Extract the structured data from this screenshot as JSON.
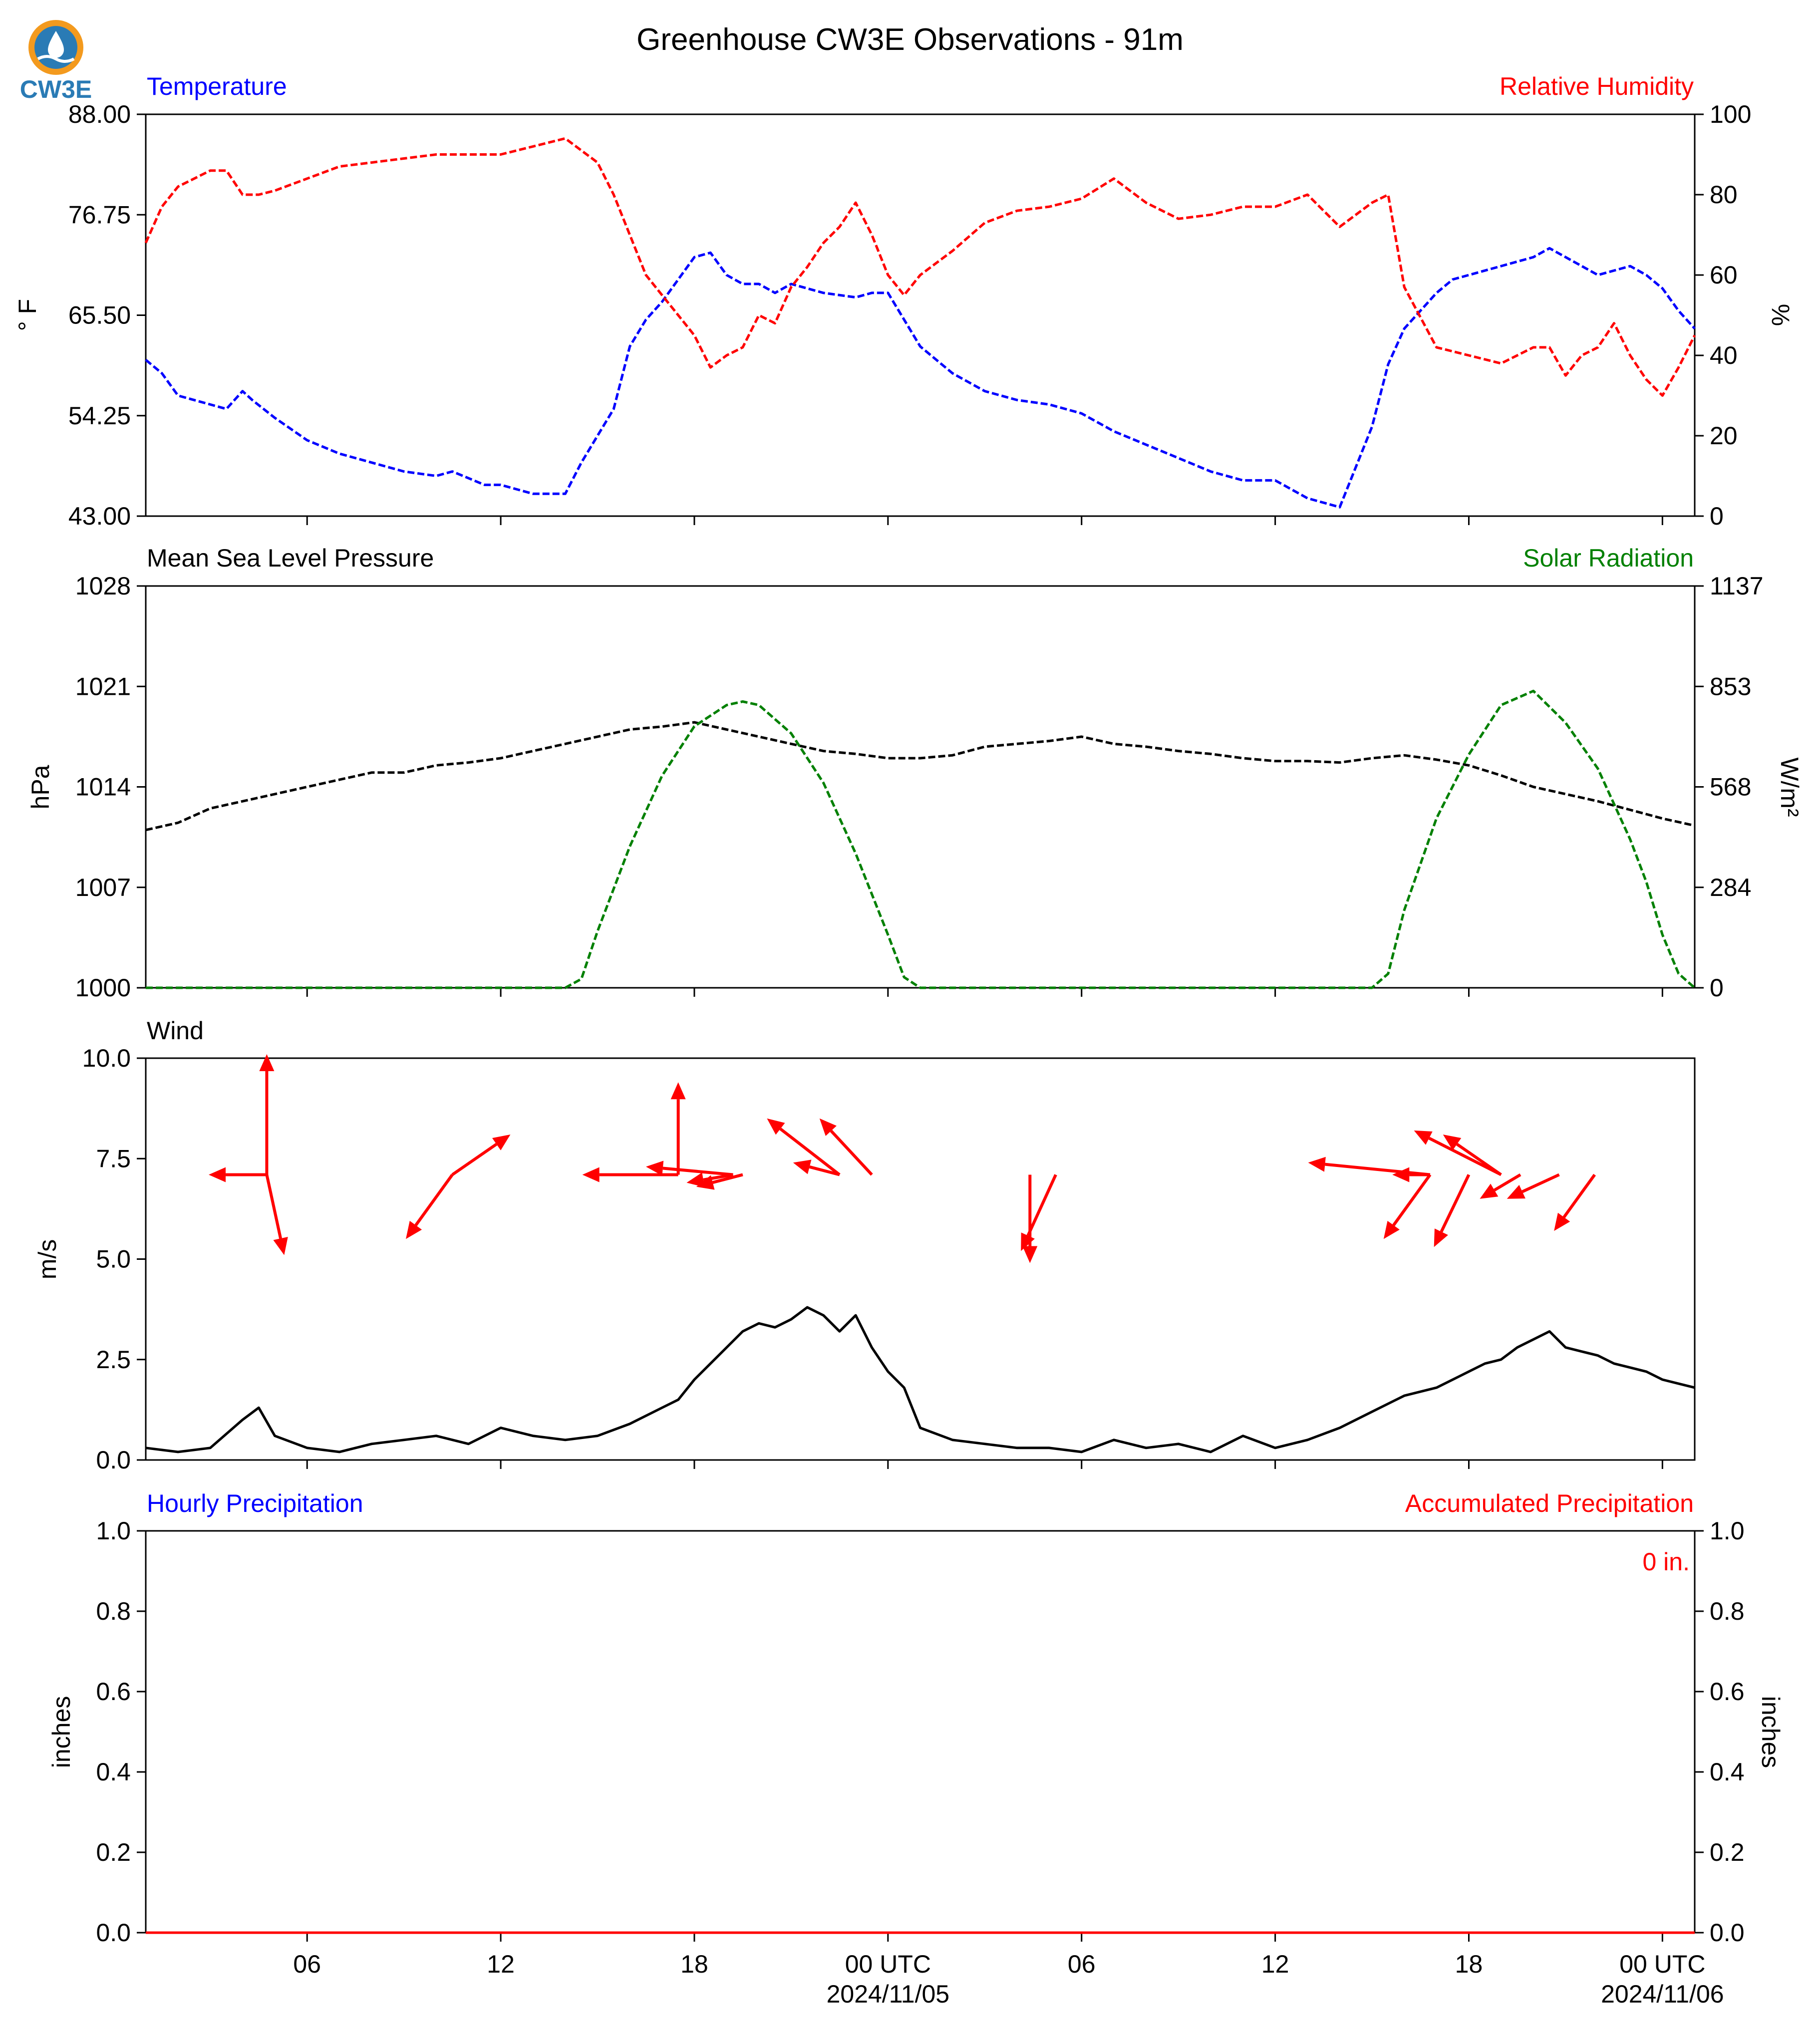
{
  "title": "Greenhouse CW3E Observations - 91m",
  "logo": {
    "text": "CW3E",
    "primary_color": "#2a7bb5",
    "accent_color": "#f39a1e"
  },
  "x_axis": {
    "tick_hours": [
      6,
      12,
      18,
      24,
      30,
      36,
      42,
      48
    ],
    "tick_labels": [
      "06",
      "12",
      "18",
      "00 UTC",
      "06",
      "12",
      "18",
      "00 UTC"
    ],
    "date_labels": [
      {
        "hour": 24,
        "text": "2024/11/05"
      },
      {
        "hour": 48,
        "text": "2024/11/06"
      }
    ],
    "range_hours": [
      1,
      49
    ]
  },
  "chart_data": [
    {
      "type": "line",
      "panel": "temperature-humidity",
      "left_label": "Temperature",
      "right_label": "Relative Humidity",
      "ylabel_left": "° F",
      "ylabel_right": "%",
      "ylim_left": [
        43,
        88
      ],
      "ylim_right": [
        0,
        100
      ],
      "yticks_left": [
        "43.00",
        "54.25",
        "65.50",
        "76.75",
        "88.00"
      ],
      "yticks_right": [
        "0",
        "20",
        "40",
        "60",
        "80",
        "100"
      ],
      "series": [
        {
          "name": "Temperature",
          "color": "#0000ff",
          "axis": "left",
          "x": [
            1,
            1.5,
            2,
            3,
            3.5,
            4,
            4.3,
            5,
            6,
            7,
            8,
            9,
            10,
            10.5,
            11.5,
            12,
            13,
            14,
            14.5,
            15,
            15.5,
            16,
            16.5,
            17,
            17.5,
            18,
            18.5,
            19,
            19.5,
            20,
            20.5,
            21,
            22,
            23,
            23.5,
            24,
            24.5,
            25,
            26,
            27,
            28,
            29,
            30,
            31,
            32,
            33,
            34,
            35,
            36,
            37,
            38,
            39,
            39.5,
            40,
            40.5,
            41,
            41.5,
            42,
            43,
            44,
            44.5,
            45,
            46,
            47,
            47.5,
            48,
            48.5,
            49
          ],
          "y": [
            60.5,
            59,
            56.5,
            55.5,
            55,
            57,
            56,
            54,
            51.5,
            50,
            49,
            48,
            47.5,
            48,
            46.5,
            46.5,
            45.5,
            45.5,
            49,
            52,
            55,
            62,
            65,
            67,
            69.5,
            72,
            72.5,
            70,
            69,
            69,
            68,
            69,
            68,
            67.5,
            68,
            68,
            65,
            62,
            59,
            57,
            56,
            55.5,
            54.5,
            52.5,
            51,
            49.5,
            48,
            47,
            47,
            45,
            44,
            53,
            60,
            64,
            66,
            68,
            69.5,
            70,
            71,
            72,
            73,
            72,
            70,
            71,
            70,
            68.5,
            66,
            64
          ]
        },
        {
          "name": "Relative Humidity",
          "color": "#ff0000",
          "axis": "right",
          "x": [
            1,
            1.5,
            2,
            3,
            3.5,
            4,
            4.5,
            5,
            6,
            7,
            8,
            9,
            10,
            11,
            12,
            13,
            14,
            15,
            15.5,
            16,
            16.5,
            17,
            17.5,
            18,
            18.5,
            19,
            19.5,
            20,
            20.5,
            21,
            21.5,
            22,
            22.5,
            23,
            23.5,
            24,
            24.5,
            25,
            26,
            27,
            28,
            29,
            30,
            31,
            32,
            33,
            34,
            35,
            36,
            37,
            38,
            39,
            39.5,
            40,
            41,
            42,
            43,
            44,
            44.5,
            45,
            45.5,
            46,
            46.5,
            47,
            47.5,
            48,
            48.5,
            49
          ],
          "y": [
            68,
            77,
            82,
            86,
            86,
            80,
            80,
            81,
            84,
            87,
            88,
            89,
            90,
            90,
            90,
            92,
            94,
            88,
            80,
            70,
            60,
            55,
            50,
            45,
            37,
            40,
            42,
            50,
            48,
            57,
            62,
            68,
            72,
            78,
            70,
            60,
            55,
            60,
            66,
            73,
            76,
            77,
            79,
            84,
            78,
            74,
            75,
            77,
            77,
            80,
            72,
            78,
            80,
            57,
            42,
            40,
            38,
            42,
            42,
            35,
            40,
            42,
            48,
            40,
            34,
            30,
            37,
            45
          ]
        }
      ]
    },
    {
      "type": "line",
      "panel": "pressure-solar",
      "left_label": "Mean Sea Level Pressure",
      "right_label": "Solar Radiation",
      "ylabel_left": "hPa",
      "ylabel_right": "W/m²",
      "ylim_left": [
        1000,
        1028
      ],
      "ylim_right": [
        0,
        1137
      ],
      "yticks_left": [
        "1000",
        "1007",
        "1014",
        "1021",
        "1028"
      ],
      "yticks_right": [
        "0",
        "284",
        "568",
        "853",
        "1137"
      ],
      "series": [
        {
          "name": "Mean Sea Level Pressure",
          "color": "#000000",
          "axis": "left",
          "x": [
            1,
            2,
            3,
            4,
            5,
            6,
            7,
            8,
            9,
            10,
            11,
            12,
            13,
            14,
            15,
            16,
            17,
            18,
            19,
            20,
            21,
            22,
            23,
            24,
            25,
            26,
            27,
            28,
            29,
            30,
            31,
            32,
            33,
            34,
            35,
            36,
            37,
            38,
            39,
            40,
            41,
            42,
            43,
            44,
            45,
            46,
            47,
            48,
            49
          ],
          "y": [
            1011,
            1011.5,
            1012.5,
            1013,
            1013.5,
            1014,
            1014.5,
            1015,
            1015,
            1015.5,
            1015.7,
            1016,
            1016.5,
            1017,
            1017.5,
            1018,
            1018.2,
            1018.5,
            1018,
            1017.5,
            1017,
            1016.5,
            1016.3,
            1016,
            1016,
            1016.2,
            1016.8,
            1017,
            1017.2,
            1017.5,
            1017,
            1016.8,
            1016.5,
            1016.3,
            1016,
            1015.8,
            1015.8,
            1015.7,
            1016,
            1016.2,
            1015.9,
            1015.5,
            1014.8,
            1014,
            1013.5,
            1013,
            1012.4,
            1011.8,
            1011.3
          ]
        },
        {
          "name": "Solar Radiation",
          "color": "#008000",
          "axis": "right",
          "x": [
            1,
            14,
            14.5,
            15,
            16,
            17,
            18,
            19,
            19.5,
            20,
            21,
            22,
            23,
            24,
            24.5,
            25,
            30,
            39,
            39.5,
            40,
            41,
            42,
            43,
            44,
            45,
            46,
            46.5,
            47,
            47.5,
            48,
            48.5,
            49
          ],
          "y": [
            0,
            0,
            25,
            160,
            400,
            600,
            740,
            800,
            810,
            800,
            720,
            580,
            380,
            150,
            30,
            0,
            0,
            0,
            40,
            220,
            480,
            660,
            800,
            840,
            750,
            620,
            520,
            420,
            300,
            150,
            40,
            0
          ]
        }
      ]
    },
    {
      "type": "line",
      "panel": "wind",
      "left_label": "Wind",
      "ylabel_left": "m/s",
      "ylim_left": [
        0,
        10
      ],
      "yticks_left": [
        "0.0",
        "2.5",
        "5.0",
        "7.5",
        "10.0"
      ],
      "series": [
        {
          "name": "Wind Speed",
          "color": "#000000",
          "axis": "left",
          "x": [
            1,
            2,
            3,
            4,
            4.5,
            5,
            6,
            7,
            8,
            9,
            10,
            11,
            12,
            13,
            14,
            15,
            16,
            17,
            17.5,
            18,
            18.5,
            19,
            19.5,
            20,
            20.5,
            21,
            21.5,
            22,
            22.5,
            23,
            23.5,
            24,
            24.5,
            25,
            26,
            27,
            28,
            29,
            30,
            31,
            32,
            33,
            34,
            35,
            36,
            37,
            38,
            39,
            40,
            41,
            41.5,
            42,
            42.5,
            43,
            43.5,
            44,
            44.5,
            45,
            45.5,
            46,
            46.5,
            47,
            47.5,
            48,
            48.5,
            49
          ],
          "y": [
            0.3,
            0.2,
            0.3,
            1,
            1.3,
            0.6,
            0.3,
            0.2,
            0.4,
            0.5,
            0.6,
            0.4,
            0.8,
            0.6,
            0.5,
            0.6,
            0.9,
            1.3,
            1.5,
            2,
            2.4,
            2.8,
            3.2,
            3.4,
            3.3,
            3.5,
            3.8,
            3.6,
            3.2,
            3.6,
            2.8,
            2.2,
            1.8,
            0.8,
            0.5,
            0.4,
            0.3,
            0.3,
            0.2,
            0.5,
            0.3,
            0.4,
            0.2,
            0.6,
            0.3,
            0.5,
            0.8,
            1.2,
            1.6,
            1.8,
            2,
            2.2,
            2.4,
            2.5,
            2.8,
            3,
            3.2,
            2.8,
            2.7,
            2.6,
            2.4,
            2.3,
            2.2,
            2,
            1.9,
            1.8
          ]
        }
      ],
      "wind_barbs": [
        {
          "x": 4.75,
          "y": 7.1,
          "dx": 0.0,
          "dy": 3.0
        },
        {
          "x": 4.75,
          "y": 7.1,
          "dx": -2.0,
          "dy": 0.0
        },
        {
          "x": 4.75,
          "y": 7.1,
          "dx": 0.6,
          "dy": -2.0
        },
        {
          "x": 10.5,
          "y": 7.1,
          "dx": 2.0,
          "dy": 1.0
        },
        {
          "x": 10.5,
          "y": 7.1,
          "dx": -1.6,
          "dy": -1.6
        },
        {
          "x": 17.5,
          "y": 7.1,
          "dx": 0.0,
          "dy": 2.3
        },
        {
          "x": 17.5,
          "y": 7.1,
          "dx": -3.3,
          "dy": 0.0
        },
        {
          "x": 19.2,
          "y": 7.1,
          "dx": -3.0,
          "dy": 0.2
        },
        {
          "x": 19.2,
          "y": 7.1,
          "dx": -1.6,
          "dy": -0.2
        },
        {
          "x": 19.5,
          "y": 7.1,
          "dx": -1.6,
          "dy": -0.3
        },
        {
          "x": 22.5,
          "y": 7.1,
          "dx": -2.5,
          "dy": 1.4
        },
        {
          "x": 22.5,
          "y": 7.1,
          "dx": -1.6,
          "dy": 0.3
        },
        {
          "x": 23.5,
          "y": 7.1,
          "dx": -1.8,
          "dy": 1.4
        },
        {
          "x": 28.4,
          "y": 7.1,
          "dx": 0.0,
          "dy": -2.2
        },
        {
          "x": 29.2,
          "y": 7.1,
          "dx": -1.2,
          "dy": -1.9
        },
        {
          "x": 40.8,
          "y": 7.1,
          "dx": -4.2,
          "dy": 0.3
        },
        {
          "x": 40.8,
          "y": 7.1,
          "dx": -1.3,
          "dy": 0.0
        },
        {
          "x": 40.8,
          "y": 7.1,
          "dx": -1.6,
          "dy": -1.6
        },
        {
          "x": 42.0,
          "y": 7.1,
          "dx": -1.2,
          "dy": -1.8
        },
        {
          "x": 43.0,
          "y": 7.1,
          "dx": -3.0,
          "dy": 1.1
        },
        {
          "x": 43.0,
          "y": 7.1,
          "dx": -2.0,
          "dy": 1.0
        },
        {
          "x": 43.6,
          "y": 7.1,
          "dx": -1.4,
          "dy": -0.6
        },
        {
          "x": 44.8,
          "y": 7.1,
          "dx": -1.8,
          "dy": -0.6
        },
        {
          "x": 45.9,
          "y": 7.1,
          "dx": -1.4,
          "dy": -1.4
        }
      ]
    },
    {
      "type": "line",
      "panel": "precipitation",
      "left_label": "Hourly Precipitation",
      "right_label": "Accumulated Precipitation",
      "ylabel_left": "inches",
      "ylabel_right": "inches",
      "ylim_left": [
        0,
        1
      ],
      "ylim_right": [
        0,
        1
      ],
      "yticks_left": [
        "0.0",
        "0.2",
        "0.4",
        "0.6",
        "0.8",
        "1.0"
      ],
      "yticks_right": [
        "0.0",
        "0.2",
        "0.4",
        "0.6",
        "0.8",
        "1.0"
      ],
      "annotation": "0 in.",
      "series": [
        {
          "name": "Hourly Precipitation",
          "color": "#0000ff",
          "axis": "left",
          "x": [
            1,
            49
          ],
          "y": [
            0,
            0
          ]
        },
        {
          "name": "Accumulated Precipitation",
          "color": "#ff0000",
          "axis": "right",
          "x": [
            1,
            49
          ],
          "y": [
            0,
            0
          ]
        }
      ]
    }
  ]
}
